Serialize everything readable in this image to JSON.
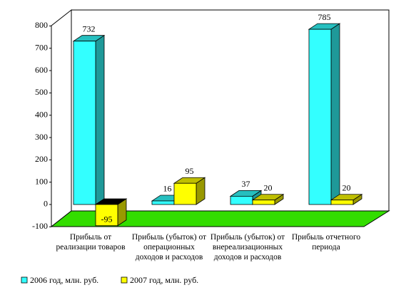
{
  "chart_data": {
    "type": "bar3d",
    "categories": [
      "Прибыль от реализации товаров",
      "Прибыль (убыток) от операционных доходов и расходов",
      "Прибыль (убыток) от внереализационных доходов и расходов",
      "Прибыль отчетного периода"
    ],
    "series": [
      {
        "name": "2006 год, млн. руб.",
        "color": "#33ffff",
        "values": [
          732,
          16,
          37,
          785
        ]
      },
      {
        "name": "2007 год, млн. руб.",
        "color": "#ffff00",
        "values": [
          -95,
          95,
          20,
          20
        ]
      }
    ],
    "ylim": [
      -100,
      800
    ],
    "yticks": [
      -100,
      0,
      100,
      200,
      300,
      400,
      500,
      600,
      700,
      800
    ]
  }
}
